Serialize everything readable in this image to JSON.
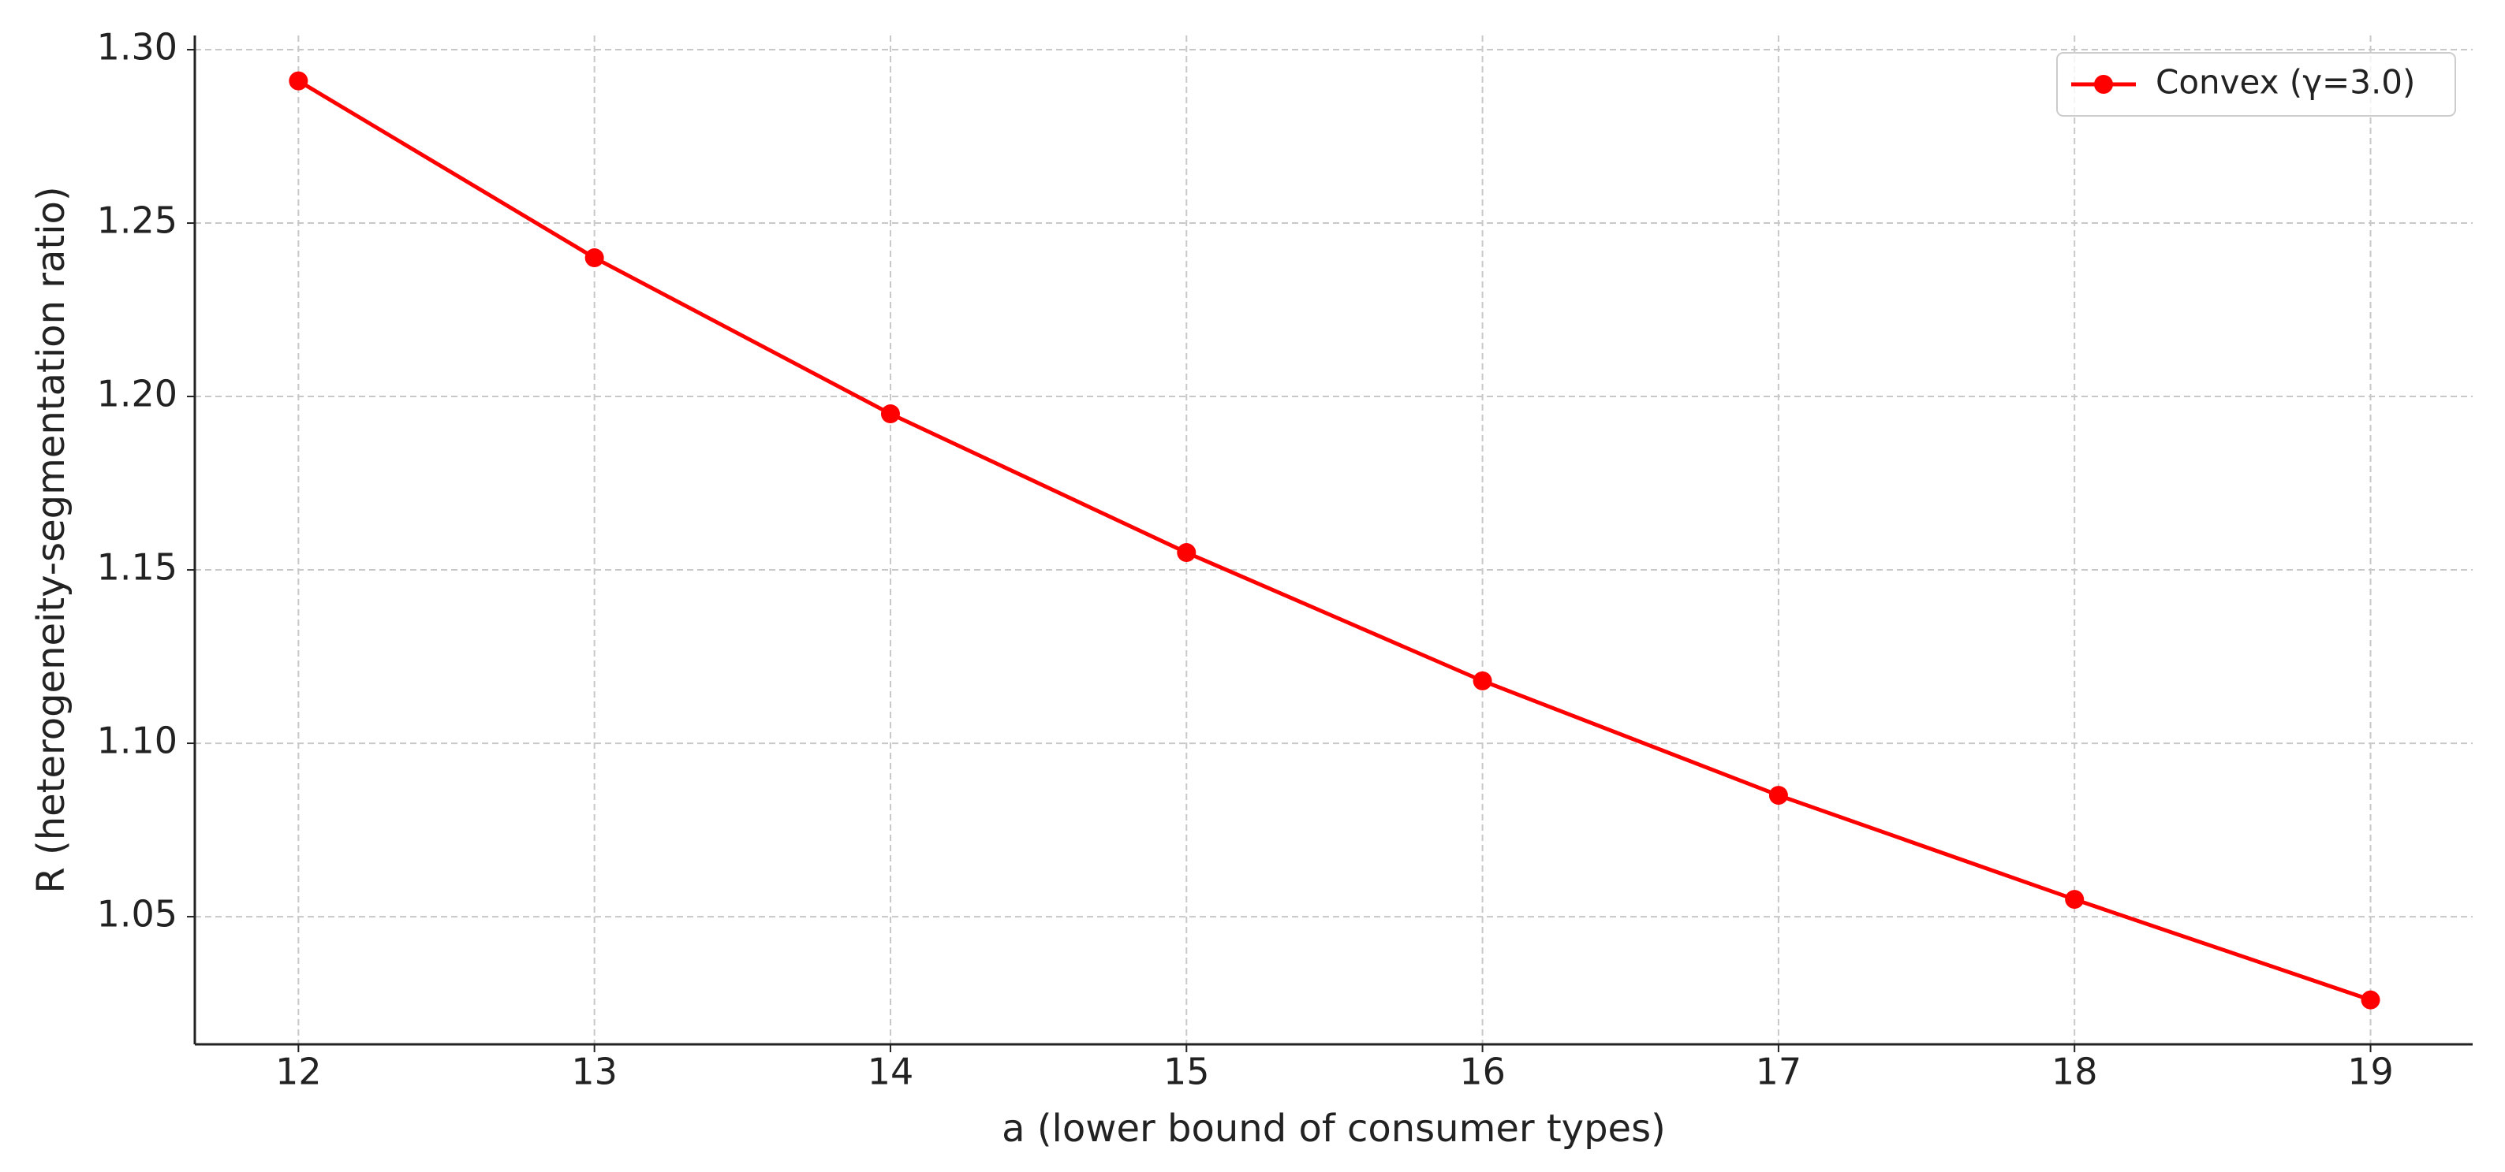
{
  "chart_data": {
    "type": "line",
    "xlabel": "a (lower bound of consumer types)",
    "ylabel": "R (heterogeneity-segmentation ratio)",
    "x": [
      12,
      13,
      14,
      15,
      16,
      17,
      18,
      19
    ],
    "series": [
      {
        "name": "Convex (γ=3.0)",
        "color": "#ff0000",
        "values": [
          1.291,
          1.24,
          1.195,
          1.155,
          1.118,
          1.085,
          1.055,
          1.026
        ]
      }
    ],
    "xlim": [
      11.65,
      19.345
    ],
    "ylim": [
      1.0132,
      1.3041
    ],
    "xticks": [
      12,
      13,
      14,
      15,
      16,
      17,
      18,
      19
    ],
    "yticks": [
      {
        "value": 1.05,
        "label": "1.05"
      },
      {
        "value": 1.1,
        "label": "1.10"
      },
      1.15,
      {
        "value": 1.2,
        "label": "1.20"
      },
      1.25,
      {
        "value": 1.3,
        "label": "1.30"
      }
    ],
    "grid": true,
    "legend": "upper right"
  }
}
